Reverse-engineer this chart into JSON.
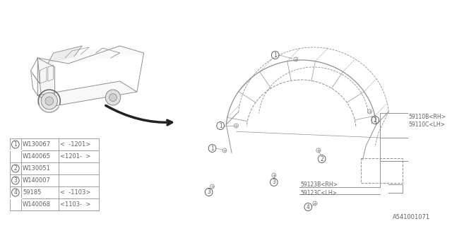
{
  "bg_color": "#ffffff",
  "diagram_id": "A541001071",
  "parts_table": [
    {
      "num": 1,
      "col1": "W130067",
      "col2": "<",
      "col3": "  -1201>"
    },
    {
      "num": 1,
      "col1": "W140065",
      "col2": "<1201-",
      "col3": "  >"
    },
    {
      "num": 2,
      "col1": "W130051",
      "col2": "",
      "col3": ""
    },
    {
      "num": 3,
      "col1": "W140007",
      "col2": "",
      "col3": ""
    },
    {
      "num": 4,
      "col1": "59185",
      "col2": "<",
      "col3": "  -1103>"
    },
    {
      "num": 4,
      "col1": "W140068",
      "col2": "<1103-",
      "col3": "  >"
    }
  ],
  "callouts_right": [
    "59110B<RH>",
    "59110C<LH>"
  ],
  "callouts_bottom_left": [
    "59123B<RH>",
    "59123C<LH>"
  ],
  "font_color": "#606060",
  "line_color": "#909090",
  "dark_line_color": "#404040",
  "table_border_color": "#909090"
}
